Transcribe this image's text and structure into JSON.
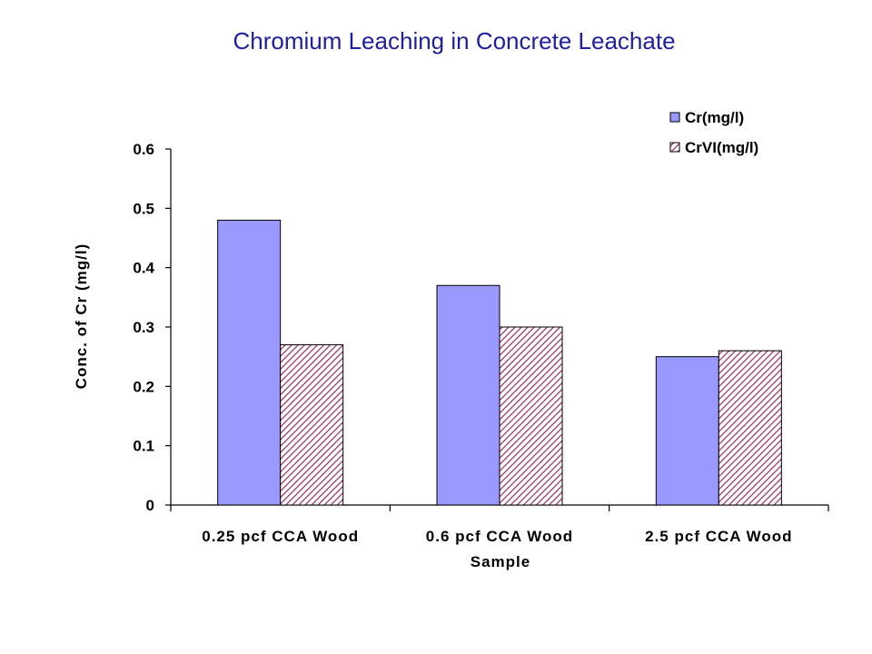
{
  "chart_data": {
    "type": "bar",
    "title": "Chromium Leaching in Concrete Leachate",
    "xlabel": "Sample",
    "ylabel": "Conc. of Cr (mg/l)",
    "categories": [
      "0.25 pcf CCA Wood",
      "0.6 pcf CCA Wood",
      "2.5 pcf CCA Wood"
    ],
    "series": [
      {
        "name": "Cr(mg/l)",
        "values": [
          0.48,
          0.37,
          0.25
        ],
        "color": "#9999ff",
        "pattern": "solid"
      },
      {
        "name": "CrVI(mg/l)",
        "values": [
          0.27,
          0.3,
          0.26
        ],
        "color": "#993366",
        "pattern": "diagonal-hatch"
      }
    ],
    "ylim": [
      0,
      0.6
    ],
    "yticks": [
      "0",
      "0.1",
      "0.2",
      "0.3",
      "0.4",
      "0.5",
      "0.6"
    ],
    "grid": false,
    "legend_position": "top-right"
  }
}
